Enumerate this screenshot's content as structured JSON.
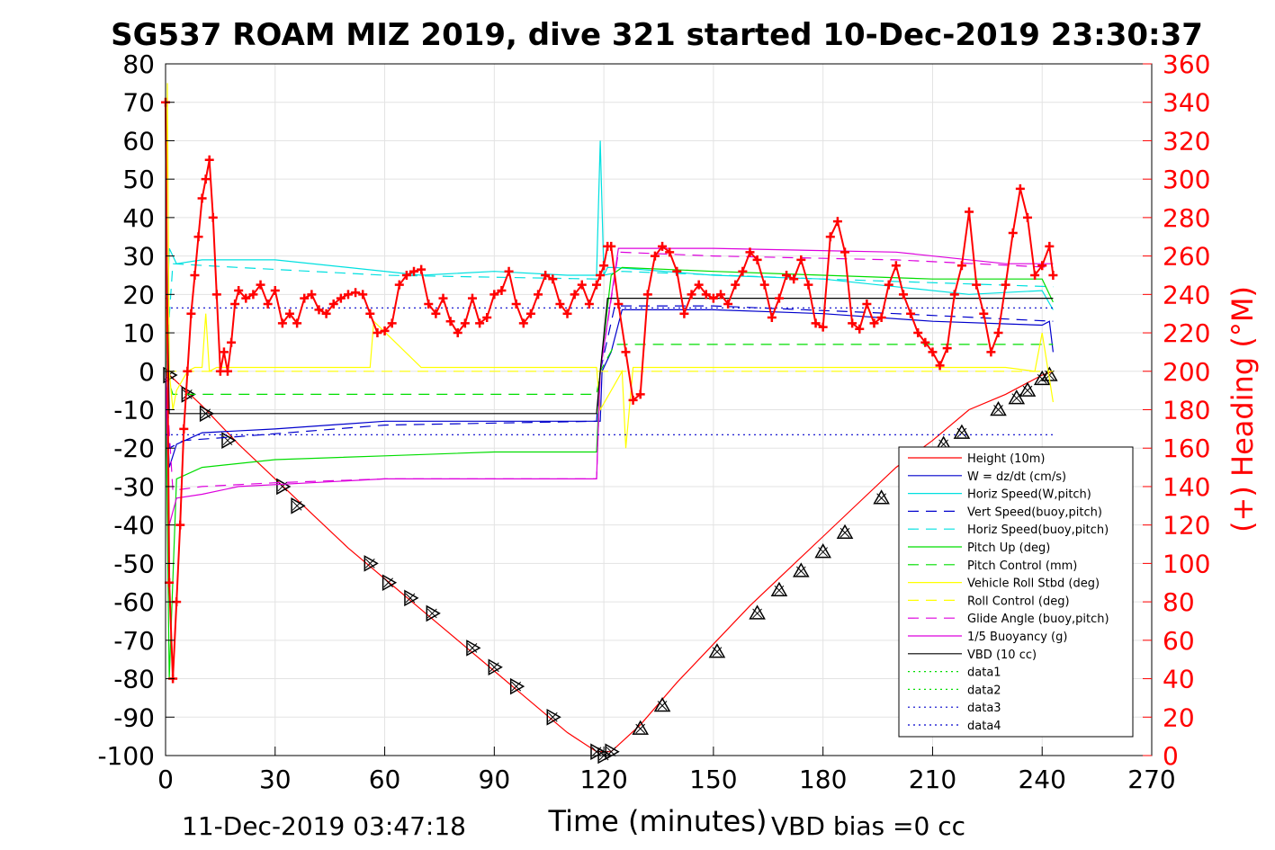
{
  "chart_data": {
    "type": "line",
    "title": "SG537 ROAM MIZ 2019, dive 321 started 10-Dec-2019 23:30:37",
    "xlabel": "Time (minutes)",
    "ylabel_left": "",
    "ylabel_right": "(+) Heading (°M)",
    "footer_left": "11-Dec-2019 03:47:18",
    "footer_right": "VBD bias =0 cc",
    "xlim": [
      0,
      270
    ],
    "ylim_left": [
      -100,
      80
    ],
    "ylim_right": [
      0,
      360
    ],
    "xticks": [
      0,
      30,
      60,
      90,
      120,
      150,
      180,
      210,
      240,
      270
    ],
    "yticks_left": [
      -100,
      -90,
      -80,
      -70,
      -60,
      -50,
      -40,
      -30,
      -20,
      -10,
      0,
      10,
      20,
      30,
      40,
      50,
      60,
      70,
      80
    ],
    "yticks_right": [
      0,
      20,
      40,
      60,
      80,
      100,
      120,
      140,
      160,
      180,
      200,
      220,
      240,
      260,
      280,
      300,
      320,
      340,
      360
    ],
    "grid": true,
    "legend_position": "lower-right",
    "legend": [
      {
        "label": "Height (10m)",
        "color": "#ff0000",
        "style": "solid"
      },
      {
        "label": "W = dz/dt (cm/s)",
        "color": "#0000cc",
        "style": "solid"
      },
      {
        "label": "Horiz Speed(W,pitch)",
        "color": "#00e0e0",
        "style": "solid"
      },
      {
        "label": "Vert Speed(buoy,pitch)",
        "color": "#0000cc",
        "style": "dashed"
      },
      {
        "label": "Horiz Speed(buoy,pitch)",
        "color": "#00e0e0",
        "style": "dashed"
      },
      {
        "label": "Pitch Up (deg)",
        "color": "#00dd00",
        "style": "solid"
      },
      {
        "label": "Pitch Control (mm)",
        "color": "#00dd00",
        "style": "dashed"
      },
      {
        "label": "Vehicle Roll Stbd (deg)",
        "color": "#ffff00",
        "style": "solid"
      },
      {
        "label": "Roll Control (deg)",
        "color": "#ffff00",
        "style": "dashed"
      },
      {
        "label": "Glide Angle (buoy,pitch)",
        "color": "#dd00dd",
        "style": "dashed"
      },
      {
        "label": "1/5 Buoyancy (g)",
        "color": "#dd00dd",
        "style": "solid"
      },
      {
        "label": "VBD (10 cc)",
        "color": "#000000",
        "style": "solid"
      },
      {
        "label": "data1",
        "color": "#00dd00",
        "style": "dotted"
      },
      {
        "label": "data2",
        "color": "#00dd00",
        "style": "dotted"
      },
      {
        "label": "data3",
        "color": "#0000cc",
        "style": "dotted"
      },
      {
        "label": "data4",
        "color": "#0000cc",
        "style": "dotted"
      }
    ],
    "series": [
      {
        "name": "Height (10m)",
        "axis": "left",
        "color": "#ff0000",
        "style": "solid",
        "x": [
          0,
          10,
          20,
          30,
          40,
          50,
          60,
          70,
          80,
          90,
          100,
          110,
          118,
          122,
          130,
          140,
          150,
          160,
          170,
          180,
          190,
          200,
          210,
          220,
          230,
          240,
          243
        ],
        "y": [
          0,
          -9,
          -19,
          -28,
          -37,
          -46,
          -54,
          -62,
          -70,
          -78,
          -86,
          -94,
          -99,
          -99,
          -92,
          -81,
          -71,
          -61,
          -52,
          -43,
          -34,
          -25,
          -18,
          -10,
          -6,
          -1,
          0
        ]
      },
      {
        "name": "Dive markers",
        "axis": "left",
        "color": "#000000",
        "style": "marker",
        "x": [
          1,
          6,
          11,
          17,
          32,
          36,
          56,
          61,
          67,
          73,
          84,
          90,
          96,
          106,
          118,
          120,
          122,
          130,
          136,
          151,
          162,
          168,
          174,
          180,
          186,
          196,
          213,
          218,
          228,
          233,
          236,
          240,
          242
        ],
        "y": [
          -1,
          -6,
          -11,
          -18,
          -30,
          -35,
          -50,
          -55,
          -59,
          -63,
          -72,
          -77,
          -82,
          -90,
          -99,
          -100,
          -99,
          -93,
          -87,
          -73,
          -63,
          -57,
          -52,
          -47,
          -42,
          -33,
          -19,
          -16,
          -10,
          -7,
          -5,
          -2,
          -1
        ]
      },
      {
        "name": "W = dz/dt (cm/s)",
        "axis": "left",
        "color": "#0000cc",
        "style": "solid",
        "x": [
          0,
          1,
          3,
          10,
          30,
          60,
          90,
          119,
          119.5,
          122,
          125,
          150,
          180,
          210,
          240,
          242,
          243
        ],
        "y": [
          0,
          -25,
          -19,
          -16,
          -15,
          -13,
          -13,
          -13,
          0,
          5,
          16,
          16,
          15,
          13,
          12,
          13,
          5
        ]
      },
      {
        "name": "Horiz Speed(W,pitch)",
        "axis": "left",
        "color": "#00e0e0",
        "style": "solid",
        "x": [
          0,
          1,
          3,
          10,
          30,
          50,
          70,
          90,
          110,
          118,
          119,
          120,
          121,
          123,
          150,
          180,
          200,
          220,
          240,
          243
        ],
        "y": [
          0,
          32,
          28,
          29,
          29,
          27,
          25,
          26,
          25,
          25,
          60,
          25,
          27,
          27,
          25,
          24,
          22,
          20,
          21,
          16
        ]
      },
      {
        "name": "Vert Speed(buoy,pitch)",
        "axis": "left",
        "color": "#0000cc",
        "style": "dashed",
        "x": [
          0,
          1,
          5,
          20,
          60,
          118,
          119,
          123,
          150,
          200,
          243
        ],
        "y": [
          0,
          -20,
          -18,
          -17,
          -14,
          -13,
          0,
          17,
          17,
          15,
          13
        ]
      },
      {
        "name": "Horiz Speed(buoy,pitch)",
        "axis": "left",
        "color": "#00e0e0",
        "style": "dashed",
        "x": [
          0,
          2,
          20,
          60,
          118,
          120,
          125,
          180,
          243
        ],
        "y": [
          0,
          28,
          27,
          25,
          24,
          25,
          26,
          24,
          22
        ]
      },
      {
        "name": "Pitch Up (deg)",
        "axis": "left",
        "color": "#00dd00",
        "style": "solid",
        "x": [
          0,
          1,
          3,
          10,
          30,
          60,
          90,
          118,
          119,
          122,
          125,
          150,
          180,
          210,
          240,
          243
        ],
        "y": [
          0,
          -80,
          -28,
          -25,
          -23,
          -22,
          -21,
          -21,
          0,
          25,
          27,
          26,
          25,
          24,
          24,
          18
        ]
      },
      {
        "name": "Pitch Control (mm)",
        "axis": "left",
        "color": "#00dd00",
        "style": "dashed",
        "x": [
          0,
          2,
          3,
          118,
          119,
          123,
          243
        ],
        "y": [
          0,
          -6,
          -6,
          -6,
          0,
          7,
          7
        ]
      },
      {
        "name": "Vehicle Roll Stbd (deg)",
        "axis": "left",
        "color": "#ffff00",
        "style": "solid",
        "x": [
          0,
          0.5,
          1,
          2,
          3,
          6,
          8,
          10,
          11,
          12,
          14,
          20,
          30,
          40,
          56,
          57,
          70,
          90,
          110,
          118,
          119,
          125,
          126,
          128,
          150,
          180,
          200,
          230,
          238,
          240,
          243
        ],
        "y": [
          0,
          75,
          0,
          -10,
          -5,
          0,
          1,
          1,
          15,
          0,
          1,
          1,
          1,
          1,
          1,
          13,
          1,
          1,
          1,
          1,
          -10,
          0,
          -20,
          1,
          1,
          1,
          1,
          1,
          0,
          10,
          -8
        ]
      },
      {
        "name": "Roll Control (deg)",
        "axis": "left",
        "color": "#ffff00",
        "style": "dashed",
        "x": [
          0,
          243
        ],
        "y": [
          0,
          0
        ]
      },
      {
        "name": "Glide Angle (buoy,pitch)",
        "axis": "left",
        "color": "#dd00dd",
        "style": "dashed",
        "x": [
          0,
          2,
          10,
          30,
          60,
          90,
          118,
          119,
          124,
          150,
          200,
          243
        ],
        "y": [
          0,
          -31,
          -30,
          -29,
          -28,
          -28,
          -28,
          0,
          31,
          30,
          29,
          27
        ]
      },
      {
        "name": "1/5 Buoyancy (g)",
        "axis": "left",
        "color": "#dd00dd",
        "style": "solid",
        "x": [
          0,
          1,
          3,
          10,
          20,
          40,
          60,
          90,
          118,
          119,
          124,
          150,
          200,
          230,
          243
        ],
        "y": [
          0,
          -40,
          -33,
          -32,
          -30,
          -29,
          -28,
          -28,
          -28,
          0,
          32,
          32,
          31,
          28,
          28
        ]
      },
      {
        "name": "VBD (10 cc)",
        "axis": "left",
        "color": "#000000",
        "style": "solid",
        "x": [
          0,
          0.5,
          1,
          118,
          119,
          121,
          243
        ],
        "y": [
          19,
          19,
          -11,
          -11,
          0,
          19,
          19
        ]
      },
      {
        "name": "data3",
        "axis": "left",
        "color": "#0000cc",
        "style": "dotted",
        "x": [
          0,
          243
        ],
        "y": [
          16.5,
          16.5
        ]
      },
      {
        "name": "data4",
        "axis": "left",
        "color": "#0000cc",
        "style": "dotted",
        "x": [
          0,
          243
        ],
        "y": [
          -16.5,
          -16.5
        ]
      },
      {
        "name": "(+) Heading (°M)",
        "axis": "right",
        "color": "#ff0000",
        "style": "plus",
        "x": [
          0,
          1,
          2,
          3,
          4,
          5,
          6,
          7,
          8,
          9,
          10,
          11,
          12,
          13,
          14,
          15,
          16,
          17,
          18,
          19,
          20,
          22,
          24,
          26,
          28,
          30,
          32,
          34,
          36,
          38,
          40,
          42,
          44,
          46,
          48,
          50,
          52,
          54,
          56,
          58,
          60,
          62,
          64,
          66,
          68,
          70,
          72,
          74,
          76,
          78,
          80,
          82,
          84,
          86,
          88,
          90,
          92,
          94,
          96,
          98,
          100,
          102,
          104,
          106,
          108,
          110,
          112,
          114,
          116,
          118,
          119,
          120,
          121,
          122,
          124,
          126,
          128,
          130,
          132,
          134,
          136,
          138,
          140,
          142,
          144,
          146,
          148,
          150,
          152,
          154,
          156,
          158,
          160,
          162,
          164,
          166,
          168,
          170,
          172,
          174,
          176,
          178,
          180,
          182,
          184,
          186,
          188,
          190,
          192,
          194,
          196,
          198,
          200,
          202,
          204,
          206,
          208,
          210,
          212,
          214,
          216,
          218,
          220,
          222,
          224,
          226,
          228,
          230,
          232,
          234,
          236,
          238,
          240,
          242,
          243
        ],
        "y": [
          340,
          90,
          40,
          80,
          120,
          170,
          200,
          230,
          250,
          270,
          290,
          300,
          310,
          280,
          240,
          200,
          210,
          200,
          215,
          235,
          242,
          238,
          240,
          245,
          235,
          242,
          225,
          230,
          225,
          238,
          240,
          232,
          230,
          235,
          238,
          240,
          241,
          240,
          230,
          220,
          221,
          225,
          245,
          250,
          252,
          253,
          235,
          230,
          238,
          226,
          220,
          225,
          238,
          225,
          228,
          240,
          242,
          252,
          235,
          225,
          230,
          240,
          250,
          248,
          235,
          230,
          240,
          245,
          235,
          245,
          250,
          255,
          265,
          265,
          235,
          210,
          185,
          188,
          240,
          260,
          265,
          262,
          252,
          230,
          240,
          245,
          240,
          238,
          240,
          235,
          245,
          252,
          262,
          258,
          245,
          228,
          238,
          250,
          248,
          258,
          245,
          225,
          223,
          270,
          278,
          262,
          225,
          222,
          235,
          225,
          228,
          245,
          255,
          240,
          230,
          220,
          215,
          210,
          203,
          212,
          240,
          255,
          283,
          245,
          230,
          210,
          220,
          245,
          272,
          295,
          280,
          250,
          255,
          265,
          250
        ]
      }
    ]
  }
}
